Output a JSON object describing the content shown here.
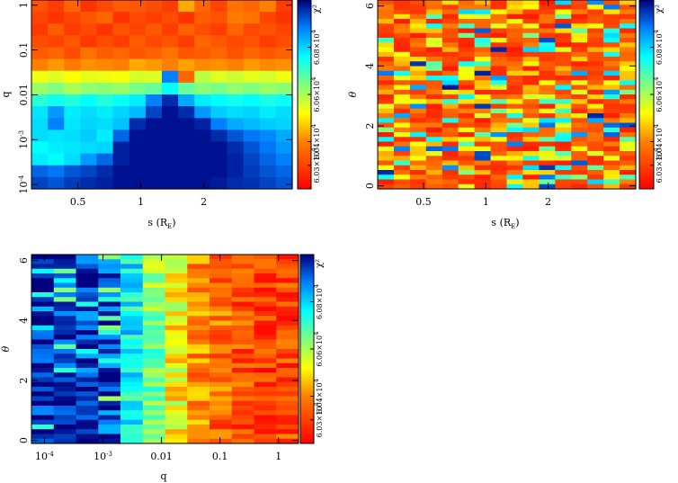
{
  "chart_data": [
    {
      "type": "heatmap",
      "id": "panel_s_q",
      "xlabel": "s (R_E)",
      "ylabel": "q",
      "x_scale": "log",
      "y_scale": "log",
      "xlim": [
        0.3,
        5.3
      ],
      "ylim": [
        8e-05,
        1.3
      ],
      "x_ticks": [
        {
          "value": 0.5,
          "label": "0.5"
        },
        {
          "value": 1,
          "label": "1"
        },
        {
          "value": 2,
          "label": "2"
        }
      ],
      "y_ticks": [
        {
          "value": 1,
          "label": "1"
        },
        {
          "value": 0.1,
          "label": "0.1"
        },
        {
          "value": 0.01,
          "label": "0.01"
        },
        {
          "value": 0.001,
          "label": "10^-3"
        },
        {
          "value": 0.0001,
          "label": "10^-4"
        }
      ],
      "colorbar": {
        "label": "χ²",
        "min": 60200.0,
        "max": 61000.0,
        "ticks": [
          {
            "value": 60300.0,
            "label": "6.03×10^4"
          },
          {
            "value": 60400.0,
            "label": "6.04×10^4"
          },
          {
            "value": 60600.0,
            "label": "6.06×10^4"
          },
          {
            "value": 60800.0,
            "label": "6.08×10^4"
          }
        ]
      },
      "values_normalized": [
        [
          0.16,
          0.12,
          0.2,
          0.1,
          0.14,
          0.18,
          0.17,
          0.15,
          0.12,
          0.3,
          0.2,
          0.13,
          0.22,
          0.2,
          0.25,
          0.12
        ],
        [
          0.13,
          0.1,
          0.13,
          0.17,
          0.2,
          0.1,
          0.14,
          0.12,
          0.15,
          0.1,
          0.18,
          0.16,
          0.24,
          0.22,
          0.13,
          0.1
        ],
        [
          0.11,
          0.18,
          0.12,
          0.14,
          0.1,
          0.16,
          0.13,
          0.17,
          0.12,
          0.19,
          0.15,
          0.12,
          0.2,
          0.14,
          0.16,
          0.13
        ],
        [
          0.15,
          0.13,
          0.17,
          0.11,
          0.15,
          0.12,
          0.18,
          0.14,
          0.16,
          0.12,
          0.2,
          0.17,
          0.14,
          0.16,
          0.12,
          0.15
        ],
        [
          0.18,
          0.2,
          0.15,
          0.22,
          0.18,
          0.2,
          0.17,
          0.19,
          0.22,
          0.17,
          0.18,
          0.2,
          0.16,
          0.2,
          0.17,
          0.19
        ],
        [
          0.25,
          0.28,
          0.24,
          0.27,
          0.26,
          0.25,
          0.3,
          0.28,
          0.25,
          0.29,
          0.26,
          0.27,
          0.25,
          0.28,
          0.26,
          0.27
        ],
        [
          0.42,
          0.44,
          0.4,
          0.43,
          0.42,
          0.41,
          0.45,
          0.44,
          0.85,
          0.2,
          0.48,
          0.44,
          0.46,
          0.43,
          0.45,
          0.42
        ],
        [
          0.52,
          0.55,
          0.5,
          0.53,
          0.54,
          0.52,
          0.56,
          0.58,
          0.7,
          0.58,
          0.54,
          0.56,
          0.53,
          0.55,
          0.52,
          0.54
        ],
        [
          0.65,
          0.68,
          0.66,
          0.7,
          0.66,
          0.69,
          0.72,
          0.85,
          0.95,
          0.8,
          0.72,
          0.7,
          0.68,
          0.7,
          0.67,
          0.69
        ],
        [
          0.73,
          0.82,
          0.72,
          0.74,
          0.72,
          0.75,
          0.78,
          0.92,
          0.98,
          0.95,
          0.82,
          0.76,
          0.74,
          0.75,
          0.72,
          0.74
        ],
        [
          0.74,
          0.85,
          0.73,
          0.75,
          0.74,
          0.77,
          0.95,
          0.98,
          0.98,
          0.98,
          0.96,
          0.85,
          0.8,
          0.78,
          0.76,
          0.75
        ],
        [
          0.74,
          0.73,
          0.74,
          0.76,
          0.72,
          0.88,
          0.98,
          0.98,
          0.98,
          0.98,
          0.98,
          0.95,
          0.9,
          0.86,
          0.84,
          0.8
        ],
        [
          0.7,
          0.72,
          0.73,
          0.74,
          0.75,
          0.96,
          0.98,
          0.98,
          0.98,
          0.98,
          0.98,
          0.98,
          0.95,
          0.9,
          0.86,
          0.82
        ],
        [
          0.72,
          0.7,
          0.74,
          0.82,
          0.88,
          0.96,
          0.98,
          0.98,
          0.98,
          0.98,
          0.98,
          0.98,
          0.96,
          0.92,
          0.88,
          0.85
        ],
        [
          0.88,
          0.86,
          0.9,
          0.92,
          0.95,
          0.98,
          0.98,
          0.98,
          0.98,
          0.98,
          0.98,
          0.98,
          0.96,
          0.93,
          0.9,
          0.88
        ],
        [
          0.92,
          0.9,
          0.93,
          0.95,
          0.96,
          0.98,
          0.98,
          0.98,
          0.98,
          0.98,
          0.98,
          0.97,
          0.95,
          0.94,
          0.92,
          0.9
        ]
      ]
    },
    {
      "type": "heatmap",
      "id": "panel_s_theta",
      "xlabel": "s (R_E)",
      "ylabel": "θ",
      "x_scale": "log",
      "y_scale": "linear",
      "xlim": [
        0.3,
        5.3
      ],
      "ylim": [
        -0.1,
        6.2
      ],
      "x_ticks": [
        {
          "value": 0.5,
          "label": "0.5"
        },
        {
          "value": 1,
          "label": "1"
        },
        {
          "value": 2,
          "label": "2"
        }
      ],
      "y_ticks": [
        {
          "value": 0,
          "label": "0"
        },
        {
          "value": 2,
          "label": "2"
        },
        {
          "value": 4,
          "label": "4"
        },
        {
          "value": 6,
          "label": "6"
        }
      ],
      "colorbar": {
        "label": "χ²",
        "min": 60200.0,
        "max": 61000.0,
        "ticks": [
          {
            "value": 60300.0,
            "label": "6.03×10^4"
          },
          {
            "value": 60400.0,
            "label": "6.04×10^4"
          },
          {
            "value": 60600.0,
            "label": "6.06×10^4"
          },
          {
            "value": 60800.0,
            "label": "6.08×10^4"
          }
        ]
      },
      "columns": 16,
      "rows": 40,
      "value_pattern": "noisy, mostly red/orange with scattered yellow, cyan and blue cells"
    },
    {
      "type": "heatmap",
      "id": "panel_q_theta",
      "xlabel": "q",
      "ylabel": "θ",
      "x_scale": "log",
      "y_scale": "linear",
      "xlim": [
        6e-05,
        2.2
      ],
      "ylim": [
        -0.1,
        6.2
      ],
      "x_ticks": [
        {
          "value": 0.0001,
          "label": "10^-4"
        },
        {
          "value": 0.001,
          "label": "10^-3"
        },
        {
          "value": 0.01,
          "label": "0.01"
        },
        {
          "value": 0.1,
          "label": "0.1"
        },
        {
          "value": 1,
          "label": "1"
        }
      ],
      "y_ticks": [
        {
          "value": 0,
          "label": "0"
        },
        {
          "value": 2,
          "label": "2"
        },
        {
          "value": 4,
          "label": "4"
        },
        {
          "value": 6,
          "label": "6"
        }
      ],
      "colorbar": {
        "label": "χ²",
        "min": 60200.0,
        "max": 61000.0,
        "ticks": [
          {
            "value": 60300.0,
            "label": "6.03×10^4"
          },
          {
            "value": 60400.0,
            "label": "6.04×10^4"
          },
          {
            "value": 60600.0,
            "label": "6.06×10^4"
          },
          {
            "value": 60800.0,
            "label": "6.08×10^4"
          }
        ]
      },
      "columns": 12,
      "rows": 40,
      "column_trend": [
        0.96,
        0.94,
        0.92,
        0.9,
        0.7,
        0.55,
        0.4,
        0.25,
        0.2,
        0.15,
        0.12,
        0.14
      ],
      "value_pattern": "blue at small q, yellow/cyan transition near q~0.01, red at large q"
    }
  ]
}
